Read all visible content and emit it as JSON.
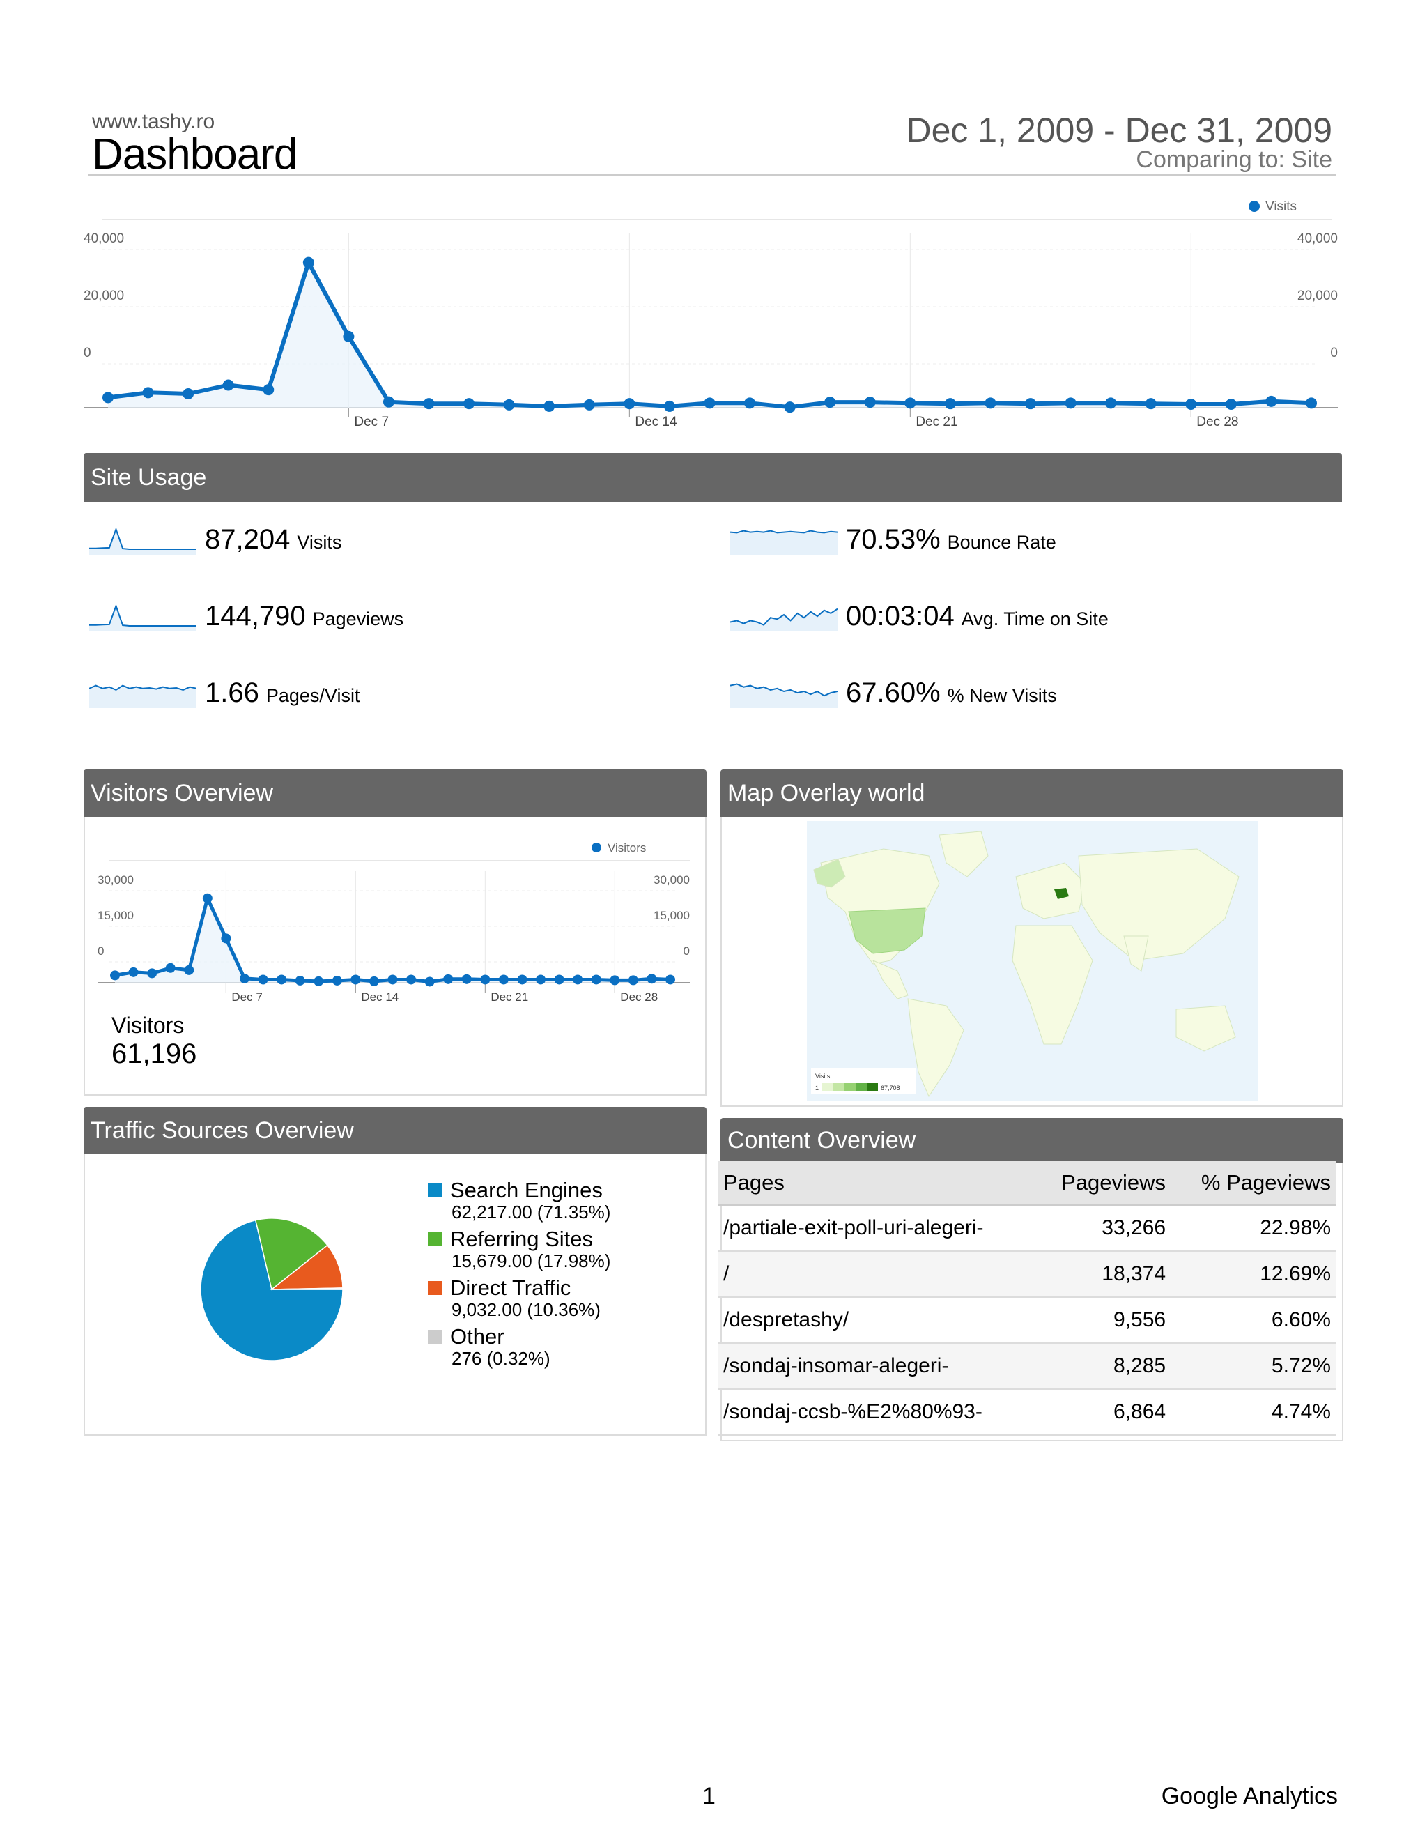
{
  "header": {
    "site_url": "www.tashy.ro",
    "title": "Dashboard",
    "date_range": "Dec 1, 2009 - Dec 31, 2009",
    "comparing": "Comparing to: Site"
  },
  "chart_data": [
    {
      "type": "line",
      "title": "",
      "legend": "Visits",
      "legend_position": "top-right",
      "x": [
        "Dec 1",
        "Dec 2",
        "Dec 3",
        "Dec 4",
        "Dec 5",
        "Dec 6",
        "Dec 7",
        "Dec 8",
        "Dec 9",
        "Dec 10",
        "Dec 11",
        "Dec 12",
        "Dec 13",
        "Dec 14",
        "Dec 15",
        "Dec 16",
        "Dec 17",
        "Dec 18",
        "Dec 19",
        "Dec 20",
        "Dec 21",
        "Dec 22",
        "Dec 23",
        "Dec 24",
        "Dec 25",
        "Dec 26",
        "Dec 27",
        "Dec 28",
        "Dec 29",
        "Dec 30",
        "Dec 31"
      ],
      "series": [
        {
          "name": "Visits",
          "values": [
            -16500,
            -14800,
            -15200,
            -12200,
            -13800,
            30000,
            4500,
            -18000,
            -18600,
            -18600,
            -19000,
            -19500,
            -19000,
            -18600,
            -19500,
            -18400,
            -18400,
            -19800,
            -18100,
            -18100,
            -18400,
            -18600,
            -18400,
            -18600,
            -18400,
            -18400,
            -18600,
            -18800,
            -18800,
            -17800,
            -18400
          ]
        }
      ],
      "x_tick_labels": [
        "Dec 7",
        "Dec 14",
        "Dec 21",
        "Dec 28"
      ],
      "y_tick_labels": [
        "40,000",
        "20,000",
        "0"
      ],
      "ylim": [
        -20000,
        40000
      ],
      "grid": true
    },
    {
      "type": "line",
      "title": "",
      "legend": "Visitors",
      "legend_position": "top-right",
      "x": [
        "Dec 1",
        "Dec 2",
        "Dec 3",
        "Dec 4",
        "Dec 5",
        "Dec 6",
        "Dec 7",
        "Dec 8",
        "Dec 9",
        "Dec 10",
        "Dec 11",
        "Dec 12",
        "Dec 13",
        "Dec 14",
        "Dec 15",
        "Dec 16",
        "Dec 17",
        "Dec 18",
        "Dec 19",
        "Dec 20",
        "Dec 21",
        "Dec 22",
        "Dec 23",
        "Dec 24",
        "Dec 25",
        "Dec 26",
        "Dec 27",
        "Dec 28",
        "Dec 29",
        "Dec 30",
        "Dec 31"
      ],
      "series": [
        {
          "name": "Visitors",
          "values": [
            -14000,
            -12500,
            -13000,
            -10500,
            -11500,
            22500,
            3500,
            -15500,
            -16000,
            -16000,
            -16500,
            -16800,
            -16500,
            -16000,
            -16800,
            -16000,
            -16000,
            -17000,
            -15800,
            -15800,
            -16000,
            -16000,
            -16000,
            -16000,
            -16000,
            -16000,
            -16000,
            -16300,
            -16300,
            -15600,
            -16000
          ]
        }
      ],
      "x_tick_labels": [
        "Dec 7",
        "Dec 14",
        "Dec 21",
        "Dec 28"
      ],
      "y_tick_labels": [
        "30,000",
        "15,000",
        "0"
      ],
      "ylim": [
        -17500,
        32000
      ],
      "grid": true
    },
    {
      "type": "pie",
      "title": "",
      "slices": [
        {
          "name": "Search Engines",
          "value": 71.35,
          "color": "#0a8ac7"
        },
        {
          "name": "Referring Sites",
          "value": 17.98,
          "color": "#55b432"
        },
        {
          "name": "Direct Traffic",
          "value": 10.36,
          "color": "#e85a1e"
        },
        {
          "name": "Other",
          "value": 0.32,
          "color": "#cccccc"
        }
      ]
    }
  ],
  "site_usage": {
    "title": "Site Usage",
    "metrics": [
      {
        "value": "87,204",
        "label": "Visits"
      },
      {
        "value": "144,790",
        "label": "Pageviews"
      },
      {
        "value": "1.66",
        "label": "Pages/Visit"
      },
      {
        "value": "70.53%",
        "label": "Bounce Rate"
      },
      {
        "value": "00:03:04",
        "label": "Avg. Time on Site"
      },
      {
        "value": "67.60%",
        "label": "% New Visits"
      }
    ]
  },
  "visitors_overview": {
    "title": "Visitors Overview",
    "label": "Visitors",
    "total": "61,196"
  },
  "map_overlay": {
    "title": "Map Overlay world",
    "legend_title": "Visits",
    "legend_min": "1",
    "legend_max": "67,708",
    "highlight_color": "#2a7a12"
  },
  "traffic_sources": {
    "title": "Traffic Sources Overview",
    "items": [
      {
        "name": "Search Engines",
        "value": "62,217.00 (71.35%)",
        "color": "#0a8ac7"
      },
      {
        "name": "Referring Sites",
        "value": "15,679.00 (17.98%)",
        "color": "#55b432"
      },
      {
        "name": "Direct Traffic",
        "value": "9,032.00 (10.36%)",
        "color": "#e85a1e"
      },
      {
        "name": "Other",
        "value": "276 (0.32%)",
        "color": "#cccccc"
      }
    ]
  },
  "content_overview": {
    "title": "Content Overview",
    "headers": [
      "Pages",
      "Pageviews",
      "% Pageviews"
    ],
    "rows": [
      [
        "/partiale-exit-poll-uri-alegeri-",
        "33,266",
        "22.98%"
      ],
      [
        "/",
        "18,374",
        "12.69%"
      ],
      [
        "/despretashy/",
        "9,556",
        "6.60%"
      ],
      [
        "/sondaj-insomar-alegeri-",
        "8,285",
        "5.72%"
      ],
      [
        "/sondaj-ccsb-%E2%80%93-",
        "6,864",
        "4.74%"
      ]
    ]
  },
  "footer": {
    "page_number": "1",
    "brand": "Google Analytics"
  },
  "colors": {
    "line": "#0a6fc2",
    "panel_header": "#666666"
  }
}
